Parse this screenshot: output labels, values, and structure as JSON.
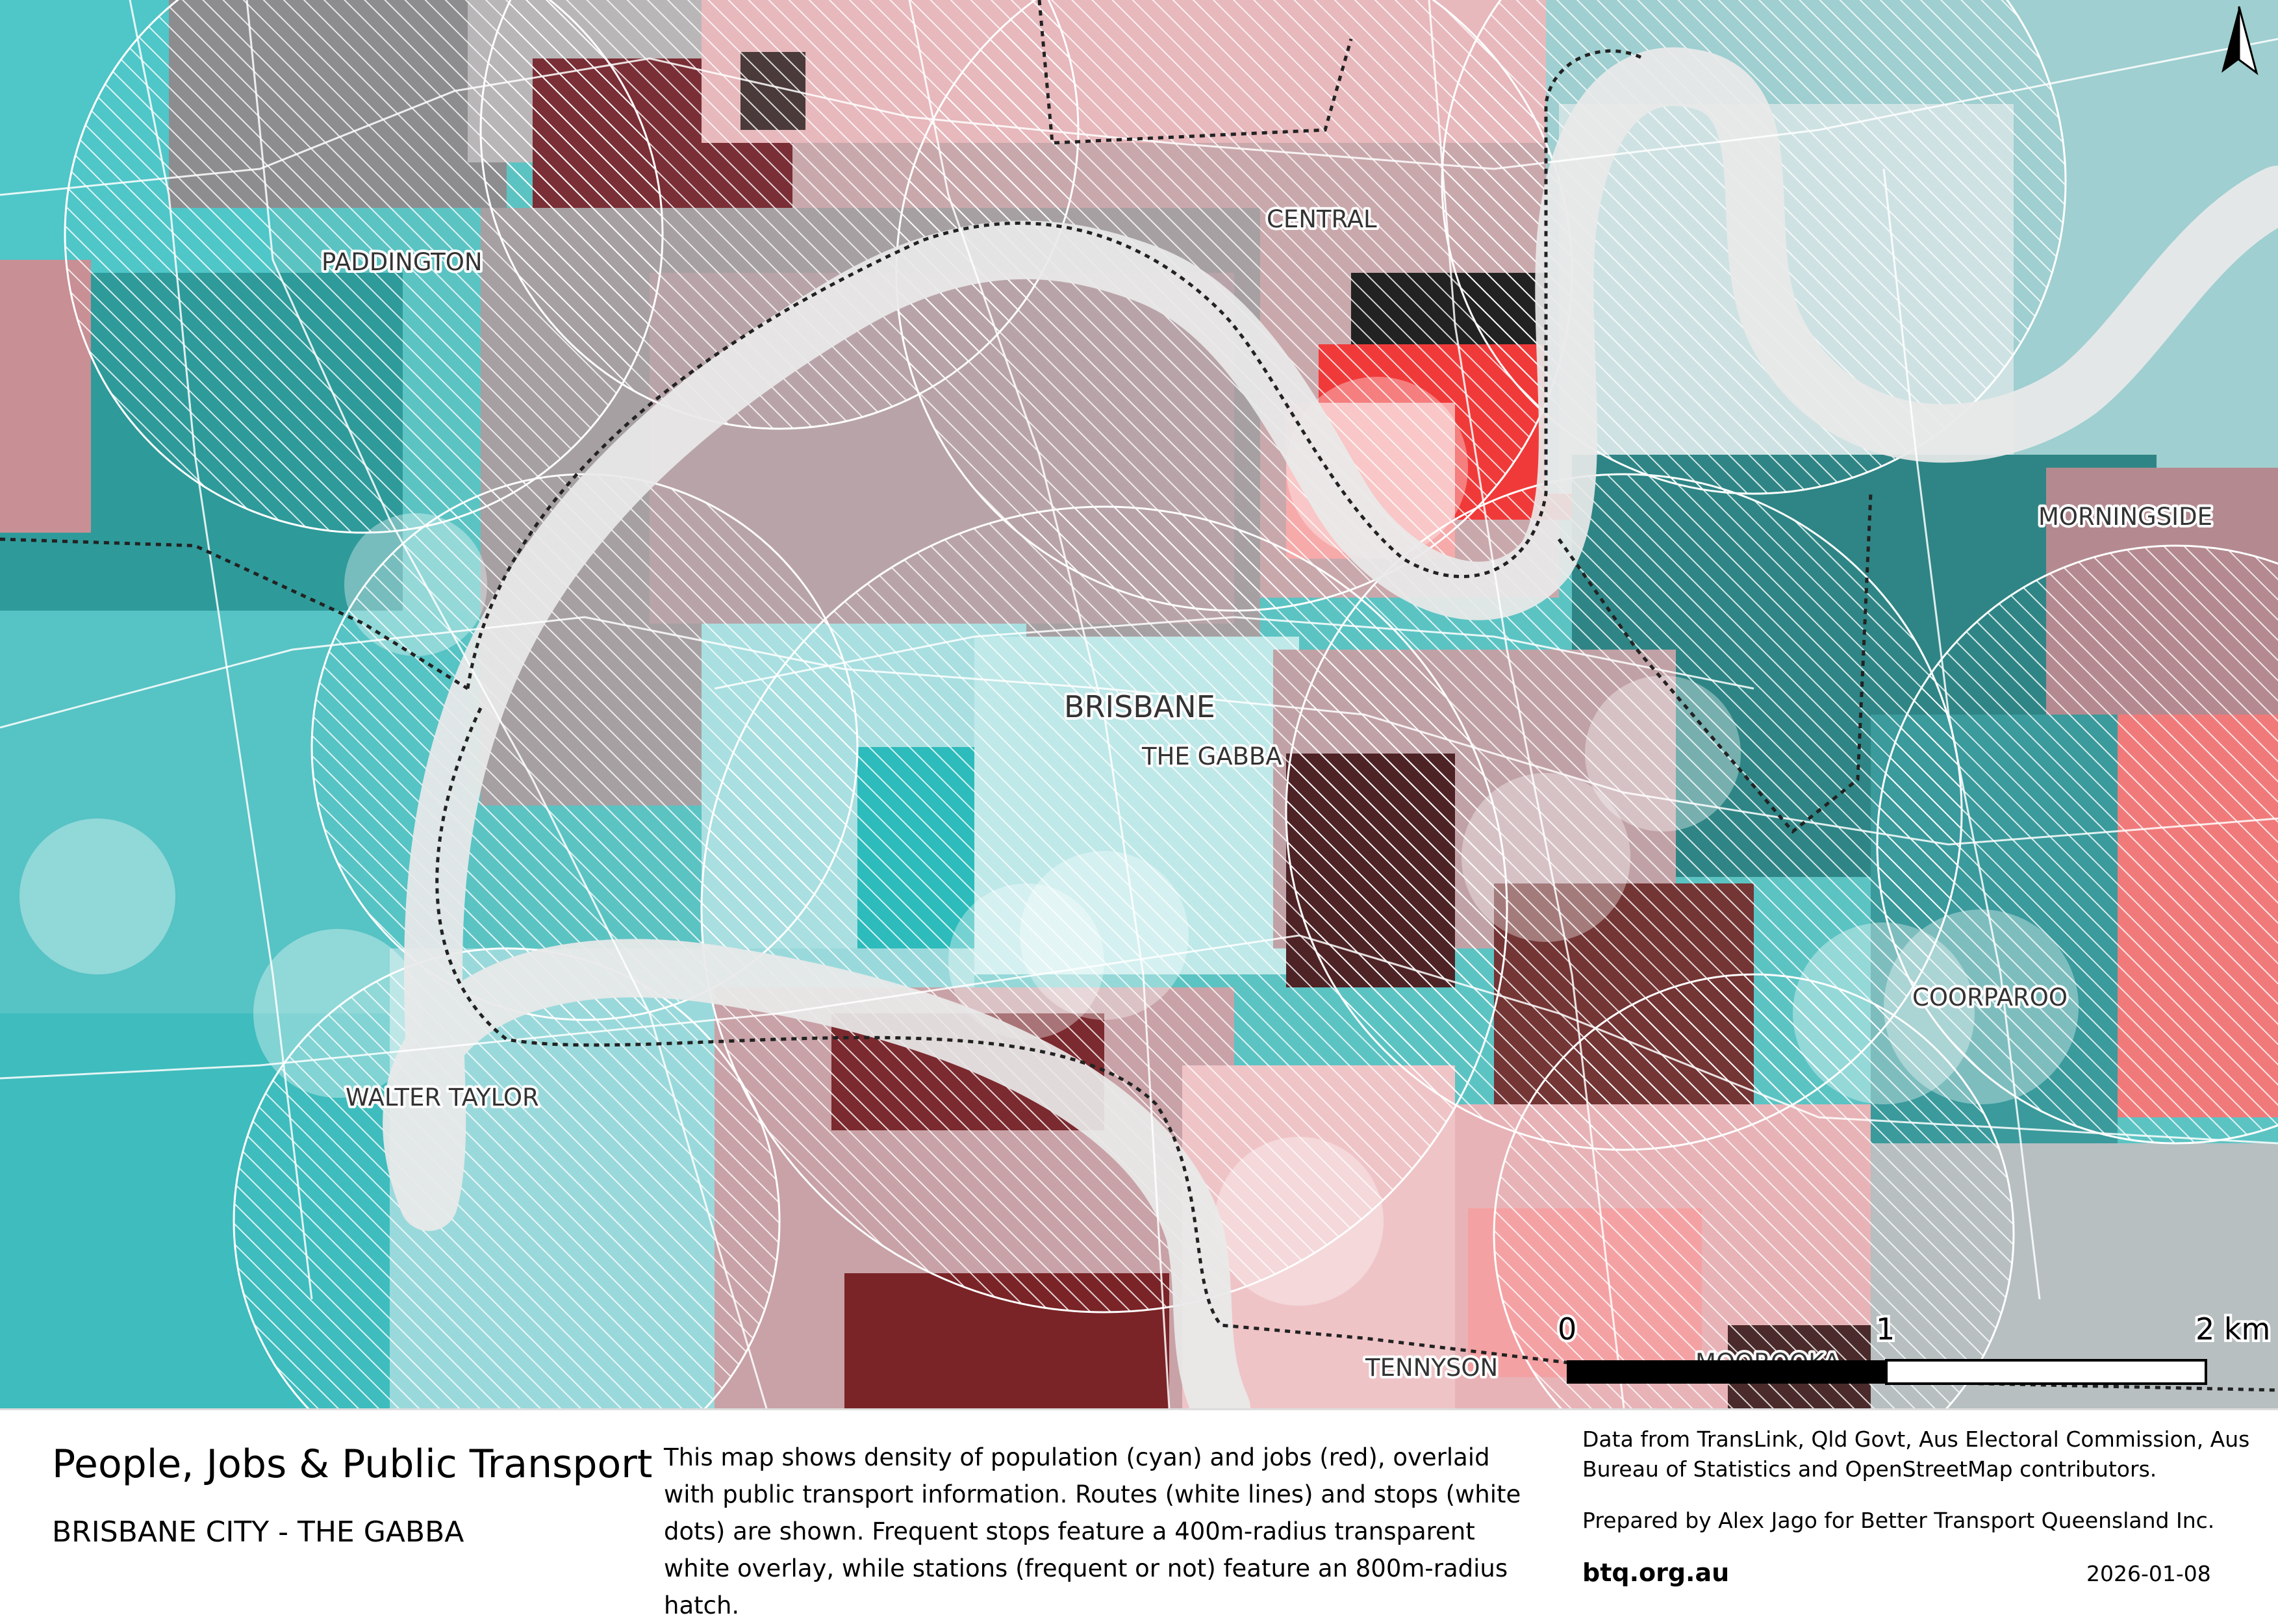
{
  "places": {
    "central": "CENTRAL",
    "paddington": "PADDINGTON",
    "morningside": "MORNINGSIDE",
    "brisbane": "BRISBANE",
    "the_gabba": "THE GABBA",
    "coorparoo": "COORPAROO",
    "walter_taylor": "WALTER TAYLOR",
    "tennyson": "TENNYSON",
    "moorooka_partial": "MOOROOKA"
  },
  "scale_bar": {
    "labels": [
      "0",
      "1",
      "2 km"
    ]
  },
  "north_arrow": {
    "icon": "north-arrow-icon"
  },
  "colors": {
    "population": "#3cc6c6",
    "jobs": "#ee3333",
    "river": "#e9e9e9",
    "routes": "#ffffff"
  },
  "footer": {
    "title": "People, Jobs & Public Transport",
    "subtitle": "BRISBANE CITY - THE GABBA",
    "description": "This map shows density of population (cyan) and jobs (red), overlaid with public transport information. Routes (white lines) and stops (white dots) are shown. Frequent stops feature a 400m-radius transparent white overlay, while stations (frequent or not) feature an 800m-radius hatch.",
    "credits": "Data from TransLink,  Qld Govt,  Aus Electoral Commission, Aus Bureau of Statistics and OpenStreetMap contributors.",
    "prepared_by": "Prepared by Alex Jago for Better Transport Queensland Inc.",
    "url": "btq.org.au",
    "date": "2026-01-08"
  }
}
